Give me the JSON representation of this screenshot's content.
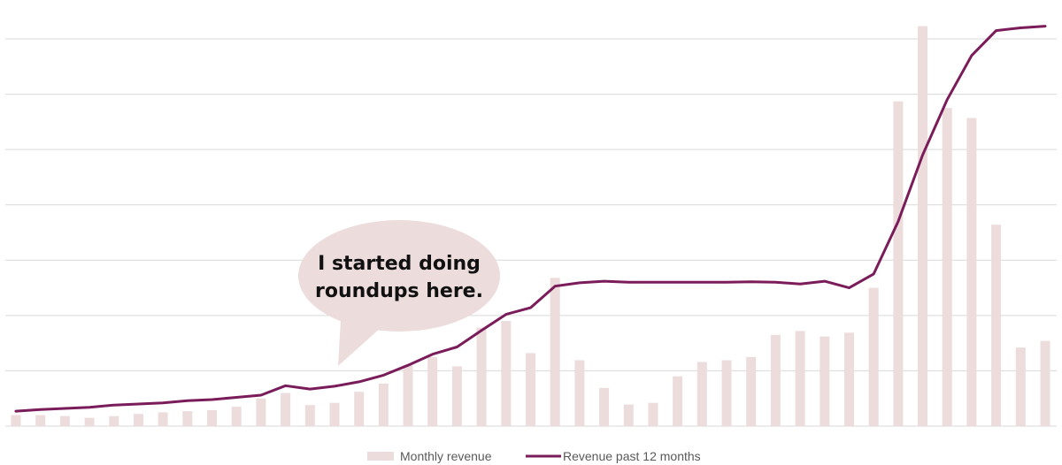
{
  "chart_data": {
    "type": "bar",
    "title": "",
    "xlabel": "",
    "ylabel": "",
    "ylim": [
      0,
      70
    ],
    "grid": true,
    "gridlines": [
      0,
      10,
      20,
      30,
      40,
      50,
      60,
      70
    ],
    "legend_position": "bottom",
    "series": [
      {
        "name": "Monthly revenue",
        "type": "bar",
        "color": "#ecdcdc",
        "values": [
          2,
          2,
          1.8,
          1.5,
          1.8,
          2.2,
          2.5,
          2.7,
          2.9,
          3.5,
          5,
          6,
          3.8,
          4.2,
          6.2,
          7.7,
          11,
          12.5,
          10.8,
          17.8,
          19,
          13.2,
          26.8,
          11.9,
          6.9,
          3.9,
          4.2,
          9,
          11.6,
          11.9,
          12.5,
          16.5,
          17.2,
          16.2,
          16.9,
          25,
          58.7,
          72.3,
          57.5,
          55.7,
          36.4,
          14.2,
          15.4
        ]
      },
      {
        "name": "Revenue past 12 months",
        "type": "line",
        "color": "#7b1c5a",
        "values": [
          2.7,
          3.0,
          3.2,
          3.4,
          3.8,
          4.0,
          4.2,
          4.6,
          4.8,
          5.2,
          5.6,
          7.3,
          6.7,
          7.2,
          8.0,
          9.2,
          11.0,
          13.0,
          14.3,
          17.3,
          20.2,
          21.4,
          25.3,
          25.9,
          26.2,
          26.0,
          26.0,
          26.0,
          26.0,
          26.0,
          26.1,
          26.0,
          25.7,
          26.2,
          25.0,
          27.5,
          37.0,
          49.0,
          59.0,
          67.0,
          71.5,
          72.0,
          72.3
        ]
      }
    ],
    "annotation": {
      "lines": [
        "I started doing",
        "roundups here."
      ]
    }
  }
}
